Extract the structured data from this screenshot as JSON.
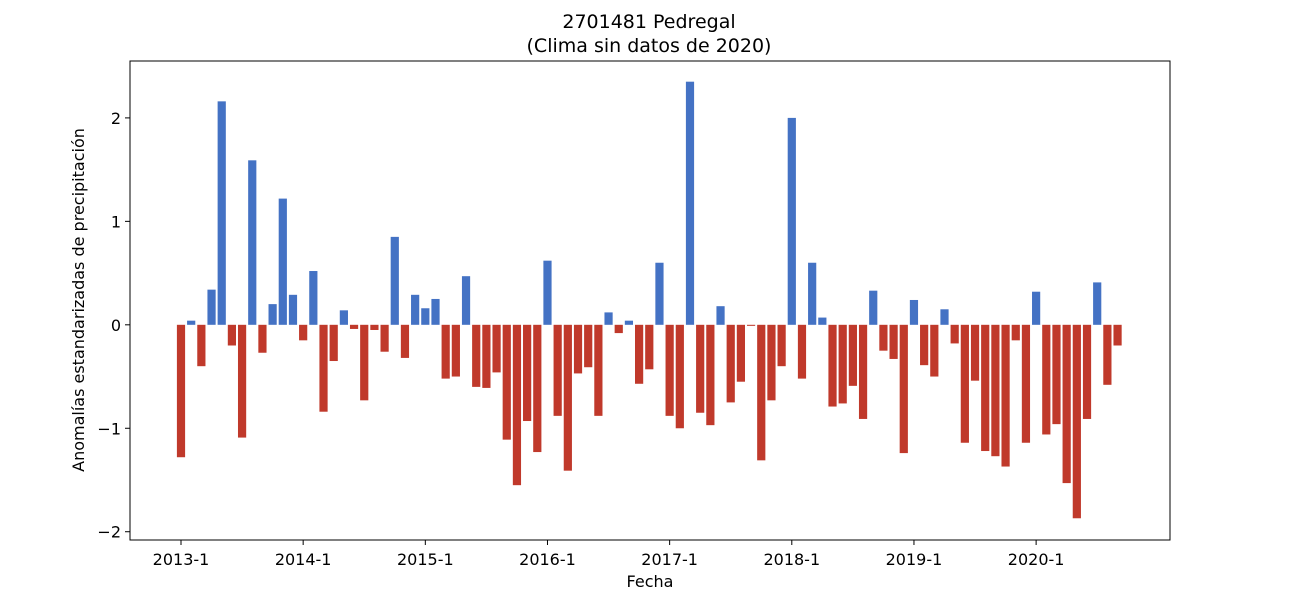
{
  "chart_data": {
    "type": "bar",
    "title": "2701481 Pedregal",
    "subtitle": "(Clima sin datos de 2020)",
    "xlabel": "Fecha",
    "ylabel": "Anomalías estandarizadas de precipitación",
    "x_tick_labels": [
      "2013-1",
      "2014-1",
      "2015-1",
      "2016-1",
      "2017-1",
      "2018-1",
      "2019-1",
      "2020-1"
    ],
    "y_ticks": [
      -2,
      -1,
      0,
      1,
      2
    ],
    "y_tick_labels": [
      "−2",
      "−1",
      "0",
      "1",
      "2"
    ],
    "ylim": [
      -2.08,
      2.55
    ],
    "positive_color": "#4472c4",
    "negative_color": "#c0392b",
    "grid": false,
    "start_month": "2013-1",
    "values": [
      -1.28,
      0.04,
      -0.4,
      0.34,
      2.16,
      -0.2,
      -1.09,
      1.59,
      -0.27,
      0.2,
      1.22,
      0.29,
      -0.15,
      0.52,
      -0.84,
      -0.35,
      0.14,
      -0.04,
      -0.73,
      -0.05,
      -0.26,
      0.85,
      -0.32,
      0.29,
      0.16,
      0.25,
      -0.52,
      -0.5,
      0.47,
      -0.6,
      -0.61,
      -0.46,
      -1.11,
      -1.55,
      -0.93,
      -1.23,
      0.62,
      -0.88,
      -1.41,
      -0.47,
      -0.41,
      -0.88,
      0.12,
      -0.08,
      0.04,
      -0.57,
      -0.43,
      0.6,
      -0.88,
      -1.0,
      2.35,
      -0.85,
      -0.97,
      0.18,
      -0.75,
      -0.55,
      -0.01,
      -1.31,
      -0.73,
      -0.4,
      2.0,
      -0.52,
      0.6,
      0.07,
      -0.79,
      -0.76,
      -0.59,
      -0.91,
      0.33,
      -0.25,
      -0.33,
      -1.24,
      0.24,
      -0.39,
      -0.5,
      0.15,
      -0.18,
      -1.14,
      -0.54,
      -1.22,
      -1.27,
      -1.37,
      -0.15,
      -1.14,
      0.32,
      -1.06,
      -0.96,
      -1.53,
      -1.87,
      -0.91,
      0.41,
      -0.58,
      -0.2
    ]
  }
}
